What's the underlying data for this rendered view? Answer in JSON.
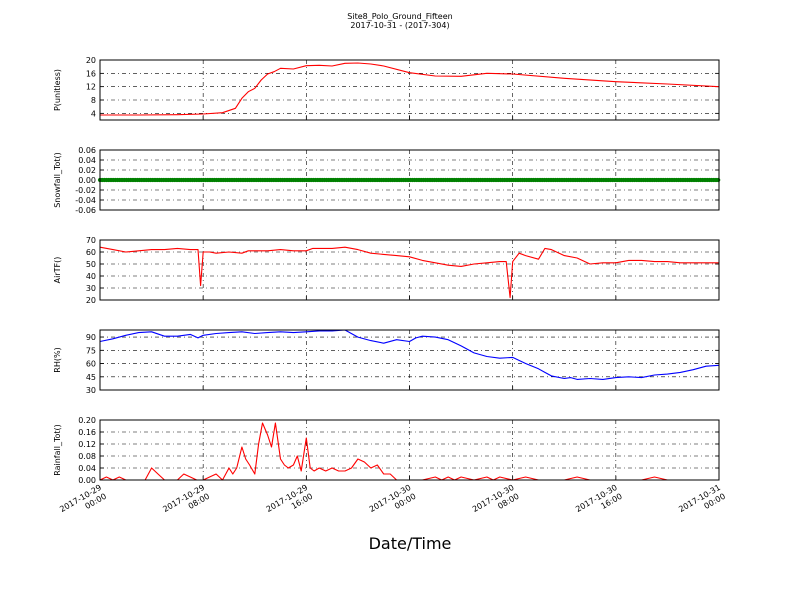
{
  "figure": {
    "title": "Site8_Polo_Ground_Fifteen",
    "subtitle": "2017-10-31 - (2017-304)",
    "xlabel": "Date/Time"
  },
  "chart_data": [
    {
      "type": "line",
      "ylabel": "P(unitless)",
      "ylim": [
        2,
        20
      ],
      "yticks": [
        "4",
        "8",
        "12",
        "16",
        "20"
      ],
      "color": "#ff0000",
      "x_hours": [
        0,
        3,
        6,
        8,
        9.5,
        10.5,
        11,
        11.5,
        12,
        12.5,
        13,
        13.5,
        14,
        15,
        16,
        17,
        18,
        19,
        20,
        21,
        22,
        24,
        26,
        28,
        30,
        32,
        36,
        40,
        44,
        48
      ],
      "values": [
        3.5,
        3.5,
        3.6,
        3.8,
        4.2,
        5.5,
        8.5,
        10.5,
        11.5,
        14,
        15.8,
        16.5,
        17.5,
        17.3,
        18.3,
        18.4,
        18.2,
        19,
        19.1,
        18.8,
        18.2,
        16.2,
        15.2,
        15.1,
        16,
        15.8,
        14.5,
        13.5,
        12.8,
        12
      ]
    },
    {
      "type": "scatter",
      "ylabel": "Snowfall_Tot()",
      "ylim": [
        -0.06,
        0.06
      ],
      "yticks": [
        "-0.06",
        "-0.04",
        "-0.02",
        "0.00",
        "0.02",
        "0.04",
        "0.06"
      ],
      "color": "#008000",
      "x_hours": [
        0,
        48
      ],
      "values": [
        0,
        0
      ]
    },
    {
      "type": "line",
      "ylabel": "AirTF()",
      "ylim": [
        20,
        70
      ],
      "yticks": [
        "20",
        "30",
        "40",
        "50",
        "60",
        "70"
      ],
      "color": "#ff0000",
      "x_hours": [
        0,
        1,
        2,
        3,
        4,
        5,
        6,
        7,
        7.6,
        7.8,
        8,
        8.5,
        9,
        10,
        11,
        11.5,
        12,
        13,
        14,
        15,
        16,
        16.5,
        17,
        18,
        19,
        20,
        21,
        22,
        23,
        24,
        25,
        26,
        27,
        28,
        29,
        30,
        31,
        31.5,
        31.8,
        32,
        32.5,
        33,
        34,
        34.5,
        35,
        36,
        37,
        38,
        39,
        40,
        41,
        42,
        43,
        44,
        45,
        46,
        47,
        48
      ],
      "values": [
        64,
        62,
        60,
        61,
        62,
        62,
        63,
        62,
        62,
        32,
        60,
        60,
        59,
        60,
        59,
        61,
        61,
        61,
        62,
        61,
        61,
        63,
        63,
        63,
        64,
        62,
        59,
        58,
        57,
        56,
        53,
        51,
        49,
        48,
        50,
        51,
        52,
        52,
        22,
        52,
        59,
        57,
        54,
        63,
        62,
        57,
        55,
        50,
        51,
        51,
        53,
        53,
        52,
        52,
        51,
        51,
        51,
        51
      ]
    },
    {
      "type": "line",
      "ylabel": "RH(%)",
      "ylim": [
        30,
        98
      ],
      "yticks": [
        "30",
        "45",
        "60",
        "75",
        "90"
      ],
      "color": "#0000ff",
      "x_hours": [
        0,
        1,
        2,
        3,
        4,
        5,
        6,
        7,
        7.6,
        8,
        9,
        10,
        11,
        12,
        13,
        14,
        15,
        16,
        17,
        18,
        19,
        20,
        21,
        22,
        23,
        24,
        24.5,
        25,
        26,
        27,
        28,
        29,
        30,
        31,
        32,
        33,
        34,
        34.5,
        35,
        36,
        36.5,
        37,
        38,
        39,
        40,
        41,
        42,
        43,
        44,
        45,
        46,
        47,
        48
      ],
      "values": [
        85,
        88,
        92,
        95,
        96,
        91,
        91,
        93,
        89,
        92,
        94,
        95,
        96,
        94,
        95,
        96,
        95,
        96,
        97,
        97,
        98,
        90,
        86,
        83,
        87,
        85,
        89,
        91,
        90,
        87,
        80,
        72,
        68,
        66,
        67,
        60,
        54,
        50,
        46,
        43,
        44,
        42,
        43,
        42,
        44,
        45,
        44,
        47,
        48,
        50,
        53,
        57,
        58
      ]
    },
    {
      "type": "line",
      "ylabel": "Rainfall_Tot()",
      "ylim": [
        0,
        0.2
      ],
      "yticks": [
        "0.00",
        "0.04",
        "0.08",
        "0.12",
        "0.16",
        "0.20"
      ],
      "color": "#ff0000",
      "x_hours": [
        0,
        0.5,
        1,
        1.5,
        2,
        2.5,
        3,
        3.5,
        4,
        4.5,
        5,
        5.5,
        6,
        6.5,
        7,
        7.5,
        8,
        8.5,
        9,
        9.5,
        10,
        10.3,
        10.6,
        11,
        11.3,
        11.6,
        12,
        12.3,
        12.6,
        13,
        13.3,
        13.6,
        14,
        14.3,
        14.6,
        15,
        15.3,
        15.6,
        16,
        16.3,
        16.6,
        17,
        17.5,
        18,
        18.5,
        19,
        19.5,
        20,
        20.5,
        21,
        21.5,
        22,
        22.5,
        23,
        24,
        25,
        26,
        26.5,
        27,
        27.5,
        28,
        29,
        30,
        30.5,
        31,
        32,
        33,
        34,
        35,
        36,
        37,
        38,
        39,
        40,
        41,
        42,
        43,
        44,
        45,
        46,
        47,
        48
      ],
      "values": [
        0,
        0.01,
        0,
        0.01,
        0,
        0,
        0,
        0,
        0.04,
        0.02,
        0,
        0,
        0,
        0.02,
        0.01,
        0,
        0,
        0.01,
        0.02,
        0,
        0.04,
        0.02,
        0.04,
        0.11,
        0.07,
        0.05,
        0.02,
        0.12,
        0.19,
        0.15,
        0.11,
        0.19,
        0.07,
        0.05,
        0.04,
        0.05,
        0.08,
        0.03,
        0.14,
        0.04,
        0.03,
        0.04,
        0.03,
        0.04,
        0.03,
        0.03,
        0.04,
        0.07,
        0.06,
        0.04,
        0.05,
        0.02,
        0.02,
        0,
        0,
        0,
        0.01,
        0,
        0.01,
        0,
        0.01,
        0,
        0.01,
        0,
        0.01,
        0,
        0.01,
        0,
        0,
        0,
        0.01,
        0,
        0,
        0,
        0,
        0,
        0.01,
        0,
        0,
        0,
        0,
        0
      ]
    }
  ],
  "x_axis": {
    "xlim_hours": [
      0,
      48
    ],
    "ticks": [
      {
        "h": 0,
        "l1": "2017-10-29",
        "l2": "00:00"
      },
      {
        "h": 8,
        "l1": "2017-10-29",
        "l2": "08:00"
      },
      {
        "h": 16,
        "l1": "2017-10-29",
        "l2": "16:00"
      },
      {
        "h": 24,
        "l1": "2017-10-30",
        "l2": "00:00"
      },
      {
        "h": 32,
        "l1": "2017-10-30",
        "l2": "08:00"
      },
      {
        "h": 40,
        "l1": "2017-10-30",
        "l2": "16:00"
      },
      {
        "h": 48,
        "l1": "2017-10-31",
        "l2": "00:00"
      }
    ]
  }
}
